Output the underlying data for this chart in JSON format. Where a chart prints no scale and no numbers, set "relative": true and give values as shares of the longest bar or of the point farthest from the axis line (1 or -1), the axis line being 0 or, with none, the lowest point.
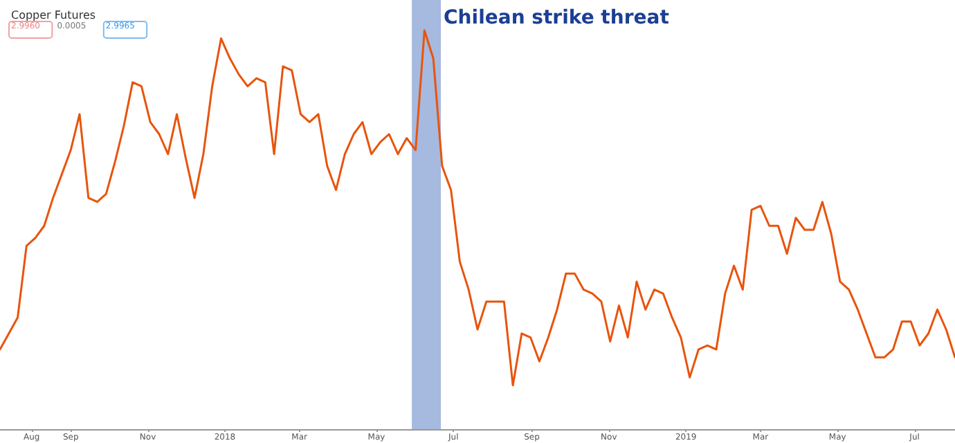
{
  "chart_data": {
    "type": "line",
    "title": "Copper Futures",
    "relative": true,
    "annotations": [
      "2.9960",
      "0.0005",
      "2.9965"
    ],
    "x": [
      "2017-07-07",
      "2017-07-14",
      "2017-07-21",
      "2017-07-28",
      "2017-08-04",
      "2017-08-11",
      "2017-08-18",
      "2017-08-25",
      "2017-09-01",
      "2017-09-08",
      "2017-09-15",
      "2017-09-22",
      "2017-09-29",
      "2017-10-06",
      "2017-10-13",
      "2017-10-20",
      "2017-10-27",
      "2017-11-03",
      "2017-11-10",
      "2017-11-17",
      "2017-11-24",
      "2017-12-01",
      "2017-12-08",
      "2017-12-15",
      "2017-12-22",
      "2017-12-29",
      "2018-01-05",
      "2018-01-12",
      "2018-01-19",
      "2018-01-26",
      "2018-02-02",
      "2018-02-09",
      "2018-02-16",
      "2018-02-23",
      "2018-03-02",
      "2018-03-09",
      "2018-03-16",
      "2018-03-23",
      "2018-03-30",
      "2018-04-06",
      "2018-04-13",
      "2018-04-20",
      "2018-04-27",
      "2018-05-04",
      "2018-05-11",
      "2018-05-18",
      "2018-05-25",
      "2018-06-01",
      "2018-06-08",
      "2018-06-15",
      "2018-06-22",
      "2018-06-29",
      "2018-07-06",
      "2018-07-13",
      "2018-07-20",
      "2018-07-27",
      "2018-08-03",
      "2018-08-10",
      "2018-08-17",
      "2018-08-24",
      "2018-08-31",
      "2018-09-07",
      "2018-09-14",
      "2018-09-21",
      "2018-09-28",
      "2018-10-05",
      "2018-10-12",
      "2018-10-19",
      "2018-10-26",
      "2018-11-02",
      "2018-11-09",
      "2018-11-16",
      "2018-11-23",
      "2018-11-30",
      "2018-12-07",
      "2018-12-14",
      "2018-12-21",
      "2018-12-28",
      "2019-01-04",
      "2019-01-11",
      "2019-01-18",
      "2019-01-25",
      "2019-02-01",
      "2019-02-08",
      "2019-02-15",
      "2019-02-22",
      "2019-03-01",
      "2019-03-08",
      "2019-03-15",
      "2019-03-22",
      "2019-03-29",
      "2019-04-05",
      "2019-04-12",
      "2019-04-19",
      "2019-04-26",
      "2019-05-03",
      "2019-05-10",
      "2019-05-17",
      "2019-05-24",
      "2019-05-31",
      "2019-06-07",
      "2019-06-14",
      "2019-06-21",
      "2019-06-28",
      "2019-07-05",
      "2019-07-12",
      "2019-07-19",
      "2019-07-26",
      "2019-08-02"
    ],
    "series": [
      {
        "color": "#e8540c",
        "values": [
          0.2,
          0.24,
          0.28,
          0.46,
          0.48,
          0.51,
          0.58,
          0.64,
          0.7,
          0.79,
          0.58,
          0.57,
          0.59,
          0.67,
          0.76,
          0.87,
          0.86,
          0.77,
          0.74,
          0.69,
          0.79,
          0.68,
          0.58,
          0.69,
          0.86,
          0.98,
          0.93,
          0.89,
          0.86,
          0.88,
          0.87,
          0.69,
          0.91,
          0.9,
          0.79,
          0.77,
          0.79,
          0.66,
          0.6,
          0.69,
          0.74,
          0.77,
          0.69,
          0.72,
          0.74,
          0.69,
          0.73,
          0.7,
          1.0,
          0.93,
          0.66,
          0.6,
          0.42,
          0.35,
          0.25,
          0.32,
          0.32,
          0.32,
          0.11,
          0.24,
          0.23,
          0.17,
          0.23,
          0.3,
          0.39,
          0.39,
          0.35,
          0.34,
          0.32,
          0.22,
          0.31,
          0.23,
          0.37,
          0.3,
          0.35,
          0.34,
          0.28,
          0.23,
          0.13,
          0.2,
          0.21,
          0.2,
          0.34,
          0.41,
          0.35,
          0.55,
          0.56,
          0.51,
          0.51,
          0.44,
          0.53,
          0.5,
          0.5,
          0.57,
          0.49,
          0.37,
          0.35,
          0.3,
          0.24,
          0.18,
          0.18,
          0.2,
          0.27,
          0.27,
          0.21,
          0.24,
          0.3,
          0.25,
          0.18
        ]
      }
    ],
    "xlim": [
      "2017-07-07",
      "2019-08-02"
    ],
    "xticks": [
      {
        "value": "2017-08-01",
        "label": "Aug"
      },
      {
        "value": "2017-09-01",
        "label": "Sep"
      },
      {
        "value": "2017-11-01",
        "label": "Nov"
      },
      {
        "value": "2018-01-01",
        "label": "2018"
      },
      {
        "value": "2018-03-01",
        "label": "Mar"
      },
      {
        "value": "2018-05-01",
        "label": "May"
      },
      {
        "value": "2018-07-01",
        "label": "Jul"
      },
      {
        "value": "2018-09-01",
        "label": "Sep"
      },
      {
        "value": "2018-11-01",
        "label": "Nov"
      },
      {
        "value": "2019-01-01",
        "label": "2019"
      },
      {
        "value": "2019-03-01",
        "label": "Mar"
      },
      {
        "value": "2019-05-01",
        "label": "May"
      },
      {
        "value": "2019-07-01",
        "label": "Jul"
      }
    ],
    "bands": [
      {
        "axis": "x",
        "from": "2018-05-29",
        "to": "2018-06-21",
        "label": "Chilean strike threat",
        "color": "#a6b9df"
      }
    ],
    "marker": "none",
    "line_style": "solid"
  }
}
